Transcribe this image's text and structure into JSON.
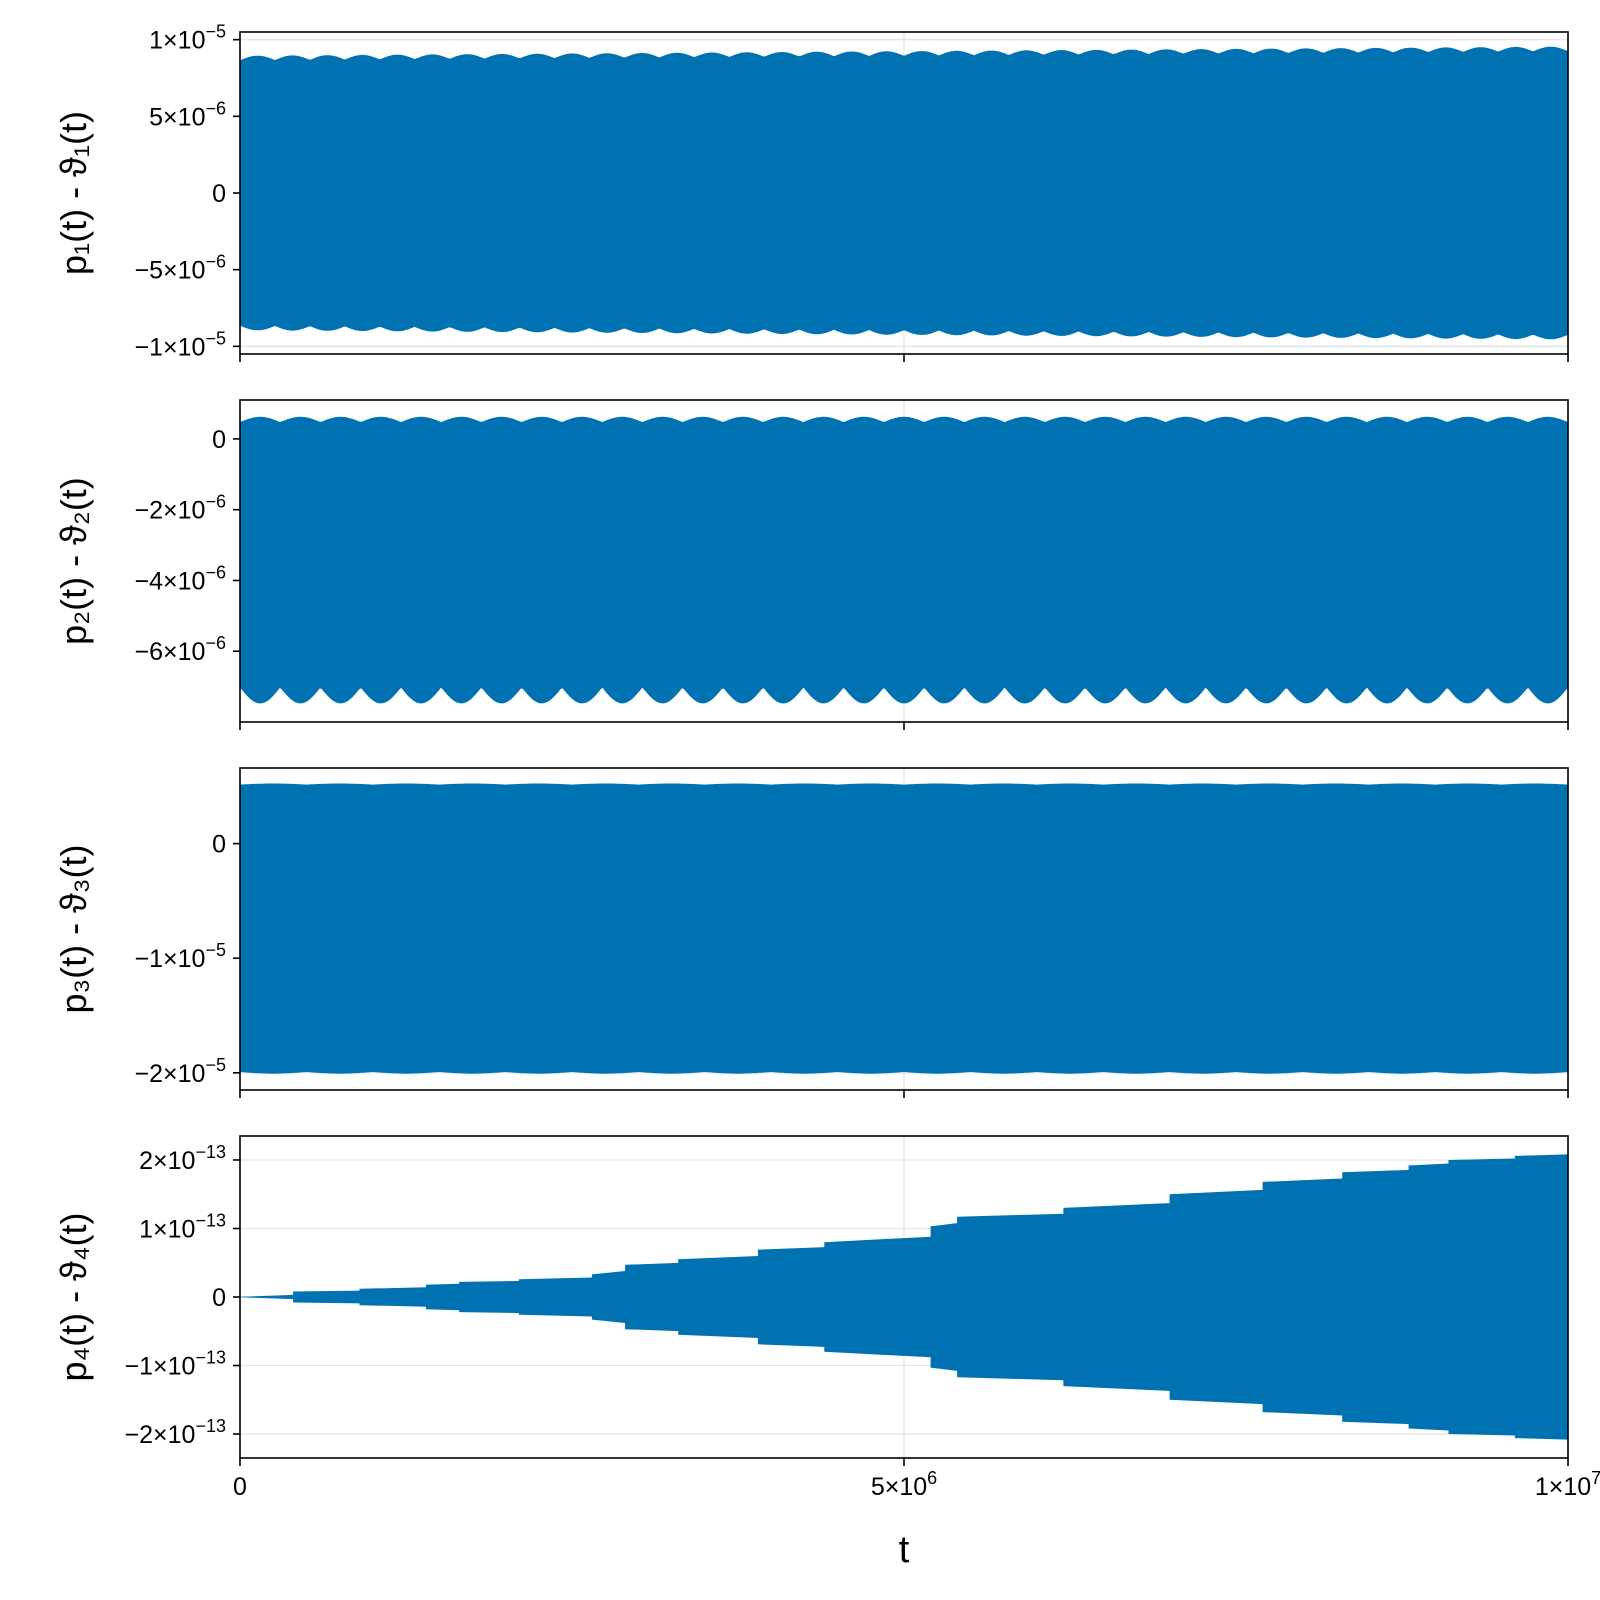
{
  "chart_data": {
    "type": "area",
    "color": "#0072B2",
    "shared_x": {
      "label": "t",
      "range": [
        0,
        10000000
      ],
      "ticks": [
        {
          "value": 0,
          "mantissa": "0",
          "exponent": ""
        },
        {
          "value": 5000000,
          "mantissa": "5×10",
          "exponent": "6"
        },
        {
          "value": 10000000,
          "mantissa": "1×10",
          "exponent": "7"
        }
      ]
    },
    "panels": [
      {
        "ylabel_main": "p₁(t) - ϑ₁(t)",
        "ylim": [
          -1.05e-05,
          1.05e-05
        ],
        "y_ticks": [
          {
            "value": 1e-05,
            "mantissa": "1×10",
            "exponent": "−5"
          },
          {
            "value": 5e-06,
            "mantissa": "5×10",
            "exponent": "−6"
          },
          {
            "value": 0,
            "mantissa": "0",
            "exponent": ""
          },
          {
            "value": -5e-06,
            "mantissa": "−5×10",
            "exponent": "−6"
          },
          {
            "value": -1e-05,
            "mantissa": "−1×10",
            "exponent": "−5"
          }
        ],
        "envelope": {
          "upper_base": 8.8e-06,
          "upper_growth": 6e-07,
          "upper_ripple": 3e-07,
          "lower_base": -8.8e-06,
          "lower_growth": -6e-07,
          "lower_ripple": 3e-07,
          "ripples": 38
        }
      },
      {
        "ylabel_main": "p₂(t) - ϑ₂(t)",
        "ylim": [
          -8e-06,
          1.1e-06
        ],
        "y_ticks": [
          {
            "value": 0,
            "mantissa": "0",
            "exponent": ""
          },
          {
            "value": -2e-06,
            "mantissa": "−2×10",
            "exponent": "−6"
          },
          {
            "value": -4e-06,
            "mantissa": "−4×10",
            "exponent": "−6"
          },
          {
            "value": -6e-06,
            "mantissa": "−6×10",
            "exponent": "−6"
          }
        ],
        "envelope": {
          "upper_base": 5.5e-07,
          "upper_growth": 0,
          "upper_ripple": 1.5e-07,
          "lower_base": -7.25e-06,
          "lower_growth": 0,
          "lower_ripple": 4.5e-07,
          "ripples": 33
        }
      },
      {
        "ylabel_main": "p₃(t) - ϑ₃(t)",
        "ylim": [
          -2.15e-05,
          6.6e-06
        ],
        "y_ticks": [
          {
            "value": 0,
            "mantissa": "0",
            "exponent": ""
          },
          {
            "value": -1e-05,
            "mantissa": "−1×10",
            "exponent": "−5"
          },
          {
            "value": -2e-05,
            "mantissa": "−2×10",
            "exponent": "−5"
          }
        ],
        "envelope": {
          "upper_base": 5.2e-06,
          "upper_growth": 0,
          "upper_ripple": 1e-07,
          "lower_base": -2e-05,
          "lower_growth": 0,
          "lower_ripple": 1.5e-07,
          "ripples": 20
        }
      },
      {
        "ylabel_main": "p₄(t) - ϑ₄(t)",
        "ylim": [
          -2.35e-13,
          2.35e-13
        ],
        "y_ticks": [
          {
            "value": 2e-13,
            "mantissa": "2×10",
            "exponent": "−13"
          },
          {
            "value": 1e-13,
            "mantissa": "1×10",
            "exponent": "−13"
          },
          {
            "value": 0,
            "mantissa": "0",
            "exponent": ""
          },
          {
            "value": -1e-13,
            "mantissa": "−1×10",
            "exponent": "−13"
          },
          {
            "value": -2e-13,
            "mantissa": "−2×10",
            "exponent": "−13"
          }
        ],
        "growth_steps": [
          [
            0,
            5e-16
          ],
          [
            400000,
            8e-15
          ],
          [
            900000,
            1.2e-14
          ],
          [
            1400000,
            1.8e-14
          ],
          [
            1650000,
            2.2e-14
          ],
          [
            2100000,
            2.6e-14
          ],
          [
            2650000,
            3.3e-14
          ],
          [
            2900000,
            4.7e-14
          ],
          [
            3300000,
            5.5e-14
          ],
          [
            3900000,
            6.9e-14
          ],
          [
            4400000,
            8e-14
          ],
          [
            5200000,
            1.03e-13
          ],
          [
            5400000,
            1.17e-13
          ],
          [
            6200000,
            1.3e-13
          ],
          [
            7000000,
            1.5e-13
          ],
          [
            7700000,
            1.68e-13
          ],
          [
            8300000,
            1.82e-13
          ],
          [
            8800000,
            1.92e-13
          ],
          [
            9100000,
            2e-13
          ],
          [
            9600000,
            2.06e-13
          ],
          [
            10000000,
            2.12e-13
          ]
        ]
      }
    ]
  }
}
